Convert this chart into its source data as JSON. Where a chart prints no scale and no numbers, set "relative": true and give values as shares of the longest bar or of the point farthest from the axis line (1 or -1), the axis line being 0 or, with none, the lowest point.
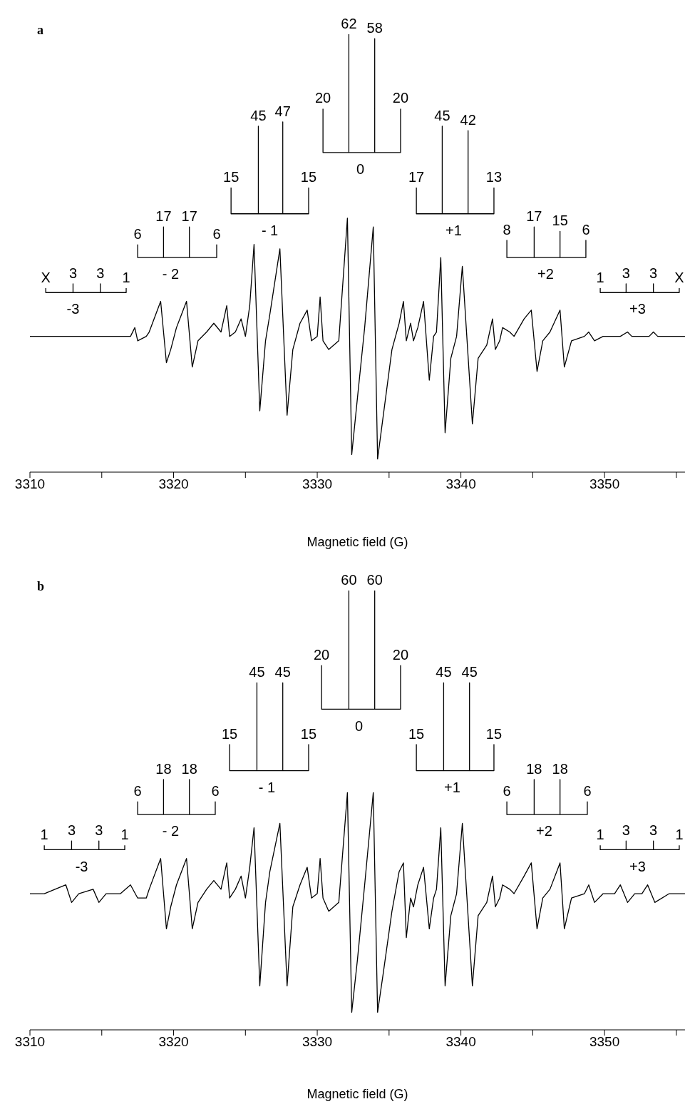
{
  "chart_data": [
    {
      "type": "line",
      "title": "a",
      "xlabel": "Magnetic field (G)",
      "relative": true,
      "xlim": [
        3310,
        3355.6
      ],
      "xticks": [
        3310,
        {
          "value": 3315,
          "label": null
        },
        3320,
        {
          "value": 3325,
          "label": null
        },
        3330,
        {
          "value": 3335,
          "label": null
        },
        3340,
        {
          "value": 3345,
          "label": null
        },
        3350,
        {
          "value": 3355,
          "label": null
        }
      ],
      "series": [
        {
          "type": "line",
          "color": "#000000",
          "x": [
            3310.0,
            3312.6,
            3312.9,
            3313.1,
            3313.9,
            3314.9,
            3315.1,
            3315.9,
            3317.0,
            3317.3,
            3317.5,
            3318.1,
            3318.3,
            3319.1,
            3319.5,
            3319.8,
            3320.2,
            3320.9,
            3321.3,
            3321.7,
            3322.3,
            3322.8,
            3323.3,
            3323.7,
            3323.9,
            3324.3,
            3324.7,
            3325.0,
            3325.3,
            3325.6,
            3326.0,
            3326.4,
            3326.7,
            3327.4,
            3327.9,
            3328.3,
            3328.8,
            3329.3,
            3329.6,
            3330.0,
            3330.2,
            3330.4,
            3330.8,
            3331.5,
            3332.1,
            3332.4,
            3332.8,
            3333.3,
            3333.9,
            3334.2,
            3334.6,
            3335.2,
            3335.7,
            3336.0,
            3336.2,
            3336.5,
            3336.7,
            3337.0,
            3337.4,
            3337.8,
            3338.1,
            3338.3,
            3338.6,
            3338.9,
            3339.3,
            3339.7,
            3340.1,
            3340.8,
            3341.2,
            3341.8,
            3342.2,
            3342.4,
            3342.7,
            3342.9,
            3343.4,
            3343.7,
            3344.4,
            3344.9,
            3345.3,
            3345.7,
            3346.2,
            3346.9,
            3347.2,
            3347.7,
            3348.6,
            3348.9,
            3349.3,
            3349.9,
            3351.1,
            3351.6,
            3351.9,
            3353.1,
            3353.4,
            3353.7,
            3355.6
          ],
          "values": [
            0.31,
            0.31,
            0.31,
            0.31,
            0.31,
            0.31,
            0.31,
            0.31,
            0.31,
            0.33,
            0.3,
            0.31,
            0.32,
            0.39,
            0.25,
            0.28,
            0.33,
            0.39,
            0.24,
            0.3,
            0.32,
            0.34,
            0.32,
            0.38,
            0.31,
            0.32,
            0.35,
            0.31,
            0.38,
            0.52,
            0.14,
            0.3,
            0.36,
            0.51,
            0.13,
            0.28,
            0.34,
            0.37,
            0.3,
            0.31,
            0.4,
            0.3,
            0.28,
            0.3,
            0.58,
            0.04,
            0.17,
            0.33,
            0.56,
            0.03,
            0.13,
            0.28,
            0.34,
            0.39,
            0.3,
            0.34,
            0.3,
            0.33,
            0.39,
            0.21,
            0.31,
            0.32,
            0.49,
            0.09,
            0.26,
            0.31,
            0.47,
            0.11,
            0.26,
            0.29,
            0.35,
            0.28,
            0.3,
            0.33,
            0.32,
            0.31,
            0.35,
            0.37,
            0.23,
            0.3,
            0.32,
            0.37,
            0.24,
            0.3,
            0.31,
            0.32,
            0.3,
            0.31,
            0.31,
            0.32,
            0.31,
            0.31,
            0.32,
            0.31,
            0.31
          ]
        },
        {
          "type": "line",
          "color": "#000000",
          "x": [
            3311.1,
            3311.1,
            3313.0,
            3313.0,
            3313.0,
            3314.9,
            3314.9,
            3314.9,
            3316.7,
            3316.7
          ],
          "values": [
            0.42,
            0.41,
            0.41,
            0.43,
            0.41,
            0.41,
            0.43,
            0.41,
            0.41,
            0.42
          ]
        },
        {
          "type": "line",
          "color": "#000000",
          "x": [
            3317.5,
            3317.5,
            3319.3,
            3319.3,
            3319.3,
            3321.1,
            3321.1,
            3321.1,
            3323.0,
            3323.0
          ],
          "values": [
            0.52,
            0.49,
            0.49,
            0.56,
            0.49,
            0.49,
            0.56,
            0.49,
            0.49,
            0.52
          ]
        },
        {
          "type": "line",
          "color": "#000000",
          "x": [
            3324.0,
            3324.0,
            3325.9,
            3325.9,
            3325.9,
            3327.6,
            3327.6,
            3327.6,
            3329.4,
            3329.4
          ],
          "values": [
            0.65,
            0.59,
            0.59,
            0.79,
            0.59,
            0.59,
            0.8,
            0.59,
            0.59,
            0.65
          ]
        },
        {
          "type": "line",
          "color": "#000000",
          "x": [
            3330.4,
            3330.4,
            3332.2,
            3332.2,
            3332.2,
            3334.0,
            3334.0,
            3334.0,
            3335.8,
            3335.8
          ],
          "values": [
            0.83,
            0.73,
            0.73,
            1,
            0.73,
            0.73,
            0.99,
            0.73,
            0.73,
            0.83
          ]
        },
        {
          "type": "line",
          "color": "#000000",
          "x": [
            3336.9,
            3336.9,
            3338.7,
            3338.7,
            3338.7,
            3340.5,
            3340.5,
            3340.5,
            3342.3,
            3342.3
          ],
          "values": [
            0.65,
            0.59,
            0.59,
            0.79,
            0.59,
            0.59,
            0.78,
            0.59,
            0.59,
            0.65
          ]
        },
        {
          "type": "line",
          "color": "#000000",
          "x": [
            3343.2,
            3343.2,
            3345.1,
            3345.1,
            3345.1,
            3346.9,
            3346.9,
            3346.9,
            3348.7,
            3348.7
          ],
          "values": [
            0.53,
            0.49,
            0.49,
            0.56,
            0.49,
            0.49,
            0.55,
            0.49,
            0.49,
            0.53
          ]
        },
        {
          "type": "line",
          "color": "#000000",
          "x": [
            3349.7,
            3349.7,
            3351.5,
            3351.5,
            3351.5,
            3353.4,
            3353.4,
            3353.4,
            3355.2,
            3355.2
          ],
          "values": [
            0.42,
            0.41,
            0.41,
            0.43,
            0.41,
            0.41,
            0.43,
            0.41,
            0.41,
            0.42
          ]
        }
      ],
      "annotations": [
        {
          "text": "X",
          "x": 3311.1,
          "y": 0.42
        },
        {
          "text": "3",
          "x": 3313.0,
          "y": 0.43
        },
        {
          "text": "3",
          "x": 3314.9,
          "y": 0.43
        },
        {
          "text": "1",
          "x": 3316.7,
          "y": 0.42
        },
        {
          "text": "-3",
          "x": 3313.0,
          "y": 0.41
        },
        {
          "text": "6",
          "x": 3317.5,
          "y": 0.52
        },
        {
          "text": "17",
          "x": 3319.3,
          "y": 0.56
        },
        {
          "text": "17",
          "x": 3321.1,
          "y": 0.56
        },
        {
          "text": "6",
          "x": 3323.0,
          "y": 0.52
        },
        {
          "text": "- 2",
          "x": 3319.8,
          "y": 0.49
        },
        {
          "text": "15",
          "x": 3324.0,
          "y": 0.65
        },
        {
          "text": "45",
          "x": 3325.9,
          "y": 0.79
        },
        {
          "text": "47",
          "x": 3327.6,
          "y": 0.8
        },
        {
          "text": "15",
          "x": 3329.4,
          "y": 0.65
        },
        {
          "text": "- 1",
          "x": 3326.7,
          "y": 0.59
        },
        {
          "text": "20",
          "x": 3330.4,
          "y": 0.83
        },
        {
          "text": "62",
          "x": 3332.2,
          "y": 1
        },
        {
          "text": "58",
          "x": 3334.0,
          "y": 0.99
        },
        {
          "text": "20",
          "x": 3335.8,
          "y": 0.83
        },
        {
          "text": "0",
          "x": 3333.0,
          "y": 0.73
        },
        {
          "text": "17",
          "x": 3336.9,
          "y": 0.65
        },
        {
          "text": "45",
          "x": 3338.7,
          "y": 0.79
        },
        {
          "text": "42",
          "x": 3340.5,
          "y": 0.78
        },
        {
          "text": "13",
          "x": 3342.3,
          "y": 0.65
        },
        {
          "text": "+1",
          "x": 3339.5,
          "y": 0.59
        },
        {
          "text": "8",
          "x": 3343.2,
          "y": 0.53
        },
        {
          "text": "17",
          "x": 3345.1,
          "y": 0.56
        },
        {
          "text": "15",
          "x": 3346.9,
          "y": 0.55
        },
        {
          "text": "6",
          "x": 3348.7,
          "y": 0.53
        },
        {
          "text": "+2",
          "x": 3345.9,
          "y": 0.49
        },
        {
          "text": "1",
          "x": 3349.7,
          "y": 0.42
        },
        {
          "text": "3",
          "x": 3351.5,
          "y": 0.43
        },
        {
          "text": "3",
          "x": 3353.4,
          "y": 0.43
        },
        {
          "text": "X",
          "x": 3355.2,
          "y": 0.42
        },
        {
          "text": "+3",
          "x": 3352.3,
          "y": 0.41
        }
      ]
    },
    {
      "type": "line",
      "title": "b",
      "xlabel": "Magnetic field (G)",
      "relative": true,
      "xlim": [
        3310,
        3355.6
      ],
      "xticks": [
        3310,
        {
          "value": 3315,
          "label": null
        },
        3320,
        {
          "value": 3325,
          "label": null
        },
        3330,
        {
          "value": 3335,
          "label": null
        },
        3340,
        {
          "value": 3345,
          "label": null
        },
        3350,
        {
          "value": 3355,
          "label": null
        }
      ],
      "series": [
        {
          "type": "line",
          "color": "#000000",
          "x": [
            3310.0,
            3311.0,
            3312.5,
            3312.9,
            3313.4,
            3314.4,
            3314.8,
            3315.3,
            3316.3,
            3317.0,
            3317.5,
            3318.1,
            3318.3,
            3319.1,
            3319.5,
            3319.8,
            3320.2,
            3320.9,
            3321.3,
            3321.7,
            3322.3,
            3322.8,
            3323.3,
            3323.7,
            3323.9,
            3324.3,
            3324.7,
            3325.0,
            3325.3,
            3325.6,
            3326.0,
            3326.4,
            3326.7,
            3327.4,
            3327.9,
            3328.3,
            3328.8,
            3329.3,
            3329.6,
            3330.0,
            3330.2,
            3330.4,
            3330.8,
            3331.5,
            3332.1,
            3332.4,
            3332.8,
            3333.3,
            3333.9,
            3334.2,
            3334.6,
            3335.2,
            3335.7,
            3336.0,
            3336.2,
            3336.5,
            3336.7,
            3337.0,
            3337.4,
            3337.8,
            3338.1,
            3338.3,
            3338.6,
            3338.9,
            3339.3,
            3339.7,
            3340.1,
            3340.8,
            3341.2,
            3341.8,
            3342.2,
            3342.4,
            3342.7,
            3342.9,
            3343.4,
            3343.7,
            3344.4,
            3344.9,
            3345.3,
            3345.7,
            3346.2,
            3346.9,
            3347.2,
            3347.7,
            3348.6,
            3348.9,
            3349.3,
            3349.9,
            3350.7,
            3351.1,
            3351.6,
            3352.1,
            3352.6,
            3353.0,
            3353.5,
            3354.5,
            3355.6
          ],
          "values": [
            0.31,
            0.31,
            0.33,
            0.29,
            0.31,
            0.32,
            0.29,
            0.31,
            0.31,
            0.33,
            0.3,
            0.3,
            0.32,
            0.39,
            0.23,
            0.28,
            0.33,
            0.39,
            0.23,
            0.29,
            0.32,
            0.34,
            0.32,
            0.38,
            0.3,
            0.32,
            0.35,
            0.3,
            0.37,
            0.46,
            0.1,
            0.29,
            0.36,
            0.47,
            0.1,
            0.28,
            0.33,
            0.37,
            0.3,
            0.31,
            0.39,
            0.3,
            0.27,
            0.29,
            0.54,
            0.04,
            0.16,
            0.33,
            0.54,
            0.04,
            0.13,
            0.27,
            0.36,
            0.38,
            0.21,
            0.3,
            0.28,
            0.33,
            0.37,
            0.23,
            0.3,
            0.32,
            0.46,
            0.1,
            0.26,
            0.31,
            0.47,
            0.1,
            0.26,
            0.29,
            0.35,
            0.28,
            0.3,
            0.33,
            0.32,
            0.31,
            0.35,
            0.38,
            0.23,
            0.3,
            0.32,
            0.38,
            0.23,
            0.3,
            0.31,
            0.33,
            0.29,
            0.31,
            0.31,
            0.33,
            0.29,
            0.31,
            0.31,
            0.33,
            0.29,
            0.31,
            0.31
          ]
        },
        {
          "type": "line",
          "color": "#000000",
          "x": [
            3311.0,
            3311.0,
            3312.9,
            3312.9,
            3312.9,
            3314.8,
            3314.8,
            3314.8,
            3316.6,
            3316.6
          ],
          "values": [
            0.42,
            0.41,
            0.41,
            0.43,
            0.41,
            0.41,
            0.43,
            0.41,
            0.41,
            0.42
          ]
        },
        {
          "type": "line",
          "color": "#000000",
          "x": [
            3317.5,
            3317.5,
            3319.3,
            3319.3,
            3319.3,
            3321.1,
            3321.1,
            3321.1,
            3322.9,
            3322.9
          ],
          "values": [
            0.52,
            0.49,
            0.49,
            0.57,
            0.49,
            0.49,
            0.57,
            0.49,
            0.49,
            0.52
          ]
        },
        {
          "type": "line",
          "color": "#000000",
          "x": [
            3323.9,
            3323.9,
            3325.8,
            3325.8,
            3325.8,
            3327.6,
            3327.6,
            3327.6,
            3329.4,
            3329.4
          ],
          "values": [
            0.65,
            0.59,
            0.59,
            0.79,
            0.59,
            0.59,
            0.79,
            0.59,
            0.59,
            0.65
          ]
        },
        {
          "type": "line",
          "color": "#000000",
          "x": [
            3330.3,
            3330.3,
            3332.2,
            3332.2,
            3332.2,
            3334.0,
            3334.0,
            3334.0,
            3335.8,
            3335.8
          ],
          "values": [
            0.83,
            0.73,
            0.73,
            1,
            0.73,
            0.73,
            1,
            0.73,
            0.73,
            0.83
          ]
        },
        {
          "type": "line",
          "color": "#000000",
          "x": [
            3336.9,
            3336.9,
            3338.8,
            3338.8,
            3338.8,
            3340.6,
            3340.6,
            3340.6,
            3342.3,
            3342.3
          ],
          "values": [
            0.65,
            0.59,
            0.59,
            0.79,
            0.59,
            0.59,
            0.79,
            0.59,
            0.59,
            0.65
          ]
        },
        {
          "type": "line",
          "color": "#000000",
          "x": [
            3343.2,
            3343.2,
            3345.1,
            3345.1,
            3345.1,
            3346.9,
            3346.9,
            3346.9,
            3348.8,
            3348.8
          ],
          "values": [
            0.52,
            0.49,
            0.49,
            0.57,
            0.49,
            0.49,
            0.57,
            0.49,
            0.49,
            0.52
          ]
        },
        {
          "type": "line",
          "color": "#000000",
          "x": [
            3349.7,
            3349.7,
            3351.5,
            3351.5,
            3351.5,
            3353.4,
            3353.4,
            3353.4,
            3355.2,
            3355.2
          ],
          "values": [
            0.42,
            0.41,
            0.41,
            0.43,
            0.41,
            0.41,
            0.43,
            0.41,
            0.41,
            0.42
          ]
        }
      ],
      "annotations": [
        {
          "text": "1",
          "x": 3311.0,
          "y": 0.42
        },
        {
          "text": "3",
          "x": 3312.9,
          "y": 0.43
        },
        {
          "text": "3",
          "x": 3314.8,
          "y": 0.43
        },
        {
          "text": "1",
          "x": 3316.6,
          "y": 0.42
        },
        {
          "text": "-3",
          "x": 3313.6,
          "y": 0.41
        },
        {
          "text": "6",
          "x": 3317.5,
          "y": 0.52
        },
        {
          "text": "18",
          "x": 3319.3,
          "y": 0.57
        },
        {
          "text": "18",
          "x": 3321.1,
          "y": 0.57
        },
        {
          "text": "6",
          "x": 3322.9,
          "y": 0.52
        },
        {
          "text": "- 2",
          "x": 3319.8,
          "y": 0.49
        },
        {
          "text": "15",
          "x": 3323.9,
          "y": 0.65
        },
        {
          "text": "45",
          "x": 3325.8,
          "y": 0.79
        },
        {
          "text": "45",
          "x": 3327.6,
          "y": 0.79
        },
        {
          "text": "15",
          "x": 3329.4,
          "y": 0.65
        },
        {
          "text": "- 1",
          "x": 3326.5,
          "y": 0.59
        },
        {
          "text": "20",
          "x": 3330.3,
          "y": 0.83
        },
        {
          "text": "60",
          "x": 3332.2,
          "y": 1
        },
        {
          "text": "60",
          "x": 3334.0,
          "y": 1
        },
        {
          "text": "20",
          "x": 3335.8,
          "y": 0.83
        },
        {
          "text": "0",
          "x": 3332.9,
          "y": 0.73
        },
        {
          "text": "15",
          "x": 3336.9,
          "y": 0.65
        },
        {
          "text": "45",
          "x": 3338.8,
          "y": 0.79
        },
        {
          "text": "45",
          "x": 3340.6,
          "y": 0.79
        },
        {
          "text": "15",
          "x": 3342.3,
          "y": 0.65
        },
        {
          "text": "+1",
          "x": 3339.4,
          "y": 0.59
        },
        {
          "text": "6",
          "x": 3343.2,
          "y": 0.52
        },
        {
          "text": "18",
          "x": 3345.1,
          "y": 0.57
        },
        {
          "text": "18",
          "x": 3346.9,
          "y": 0.57
        },
        {
          "text": "6",
          "x": 3348.8,
          "y": 0.52
        },
        {
          "text": "+2",
          "x": 3345.8,
          "y": 0.49
        },
        {
          "text": "1",
          "x": 3349.7,
          "y": 0.42
        },
        {
          "text": "3",
          "x": 3351.5,
          "y": 0.43
        },
        {
          "text": "3",
          "x": 3353.4,
          "y": 0.43
        },
        {
          "text": "1",
          "x": 3355.2,
          "y": 0.42
        },
        {
          "text": "+3",
          "x": 3352.3,
          "y": 0.41
        }
      ]
    }
  ]
}
